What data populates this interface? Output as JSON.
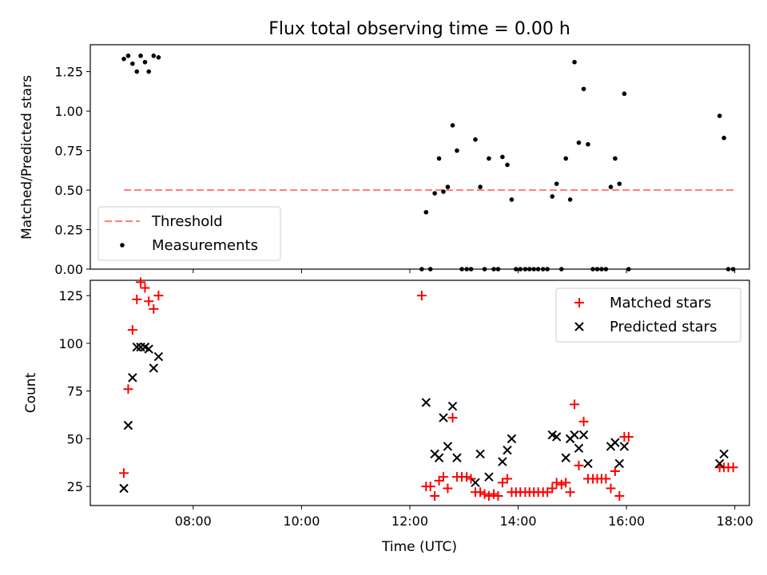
{
  "chart_data": {
    "type": "scatter",
    "title": "Flux total observing time = 0.00 h",
    "xlabel": "Time (UTC)",
    "xlim": [
      6.1,
      18.27
    ],
    "xticks": [
      8,
      10,
      12,
      14,
      16,
      18
    ],
    "xtick_labels": [
      "08:00",
      "10:00",
      "12:00",
      "14:00",
      "16:00",
      "18:00"
    ],
    "panels": [
      {
        "ylabel": "Matched/Predicted stars",
        "ylim": [
          0,
          1.42
        ],
        "yticks": [
          0,
          0.25,
          0.5,
          0.75,
          1.0,
          1.25
        ],
        "ytick_labels": [
          "0.00",
          "0.25",
          "0.50",
          "0.75",
          "1.00",
          "1.25"
        ],
        "legend_position": "lower-left",
        "series": [
          {
            "name": "Threshold",
            "kind": "line",
            "style": "dashed",
            "color": "#ff7f7f",
            "x": [
              6.72,
              17.98
            ],
            "y": [
              0.5,
              0.5
            ]
          },
          {
            "name": "Measurements",
            "kind": "scatter",
            "marker": "dot",
            "color": "#000000",
            "x": [
              6.72,
              6.8,
              6.88,
              6.96,
              7.03,
              7.11,
              7.18,
              7.27,
              7.36,
              12.22,
              12.3,
              12.38,
              12.46,
              12.54,
              12.62,
              12.7,
              12.79,
              12.87,
              12.96,
              13.05,
              13.13,
              13.21,
              13.3,
              13.38,
              13.46,
              13.55,
              13.63,
              13.71,
              13.8,
              13.88,
              13.96,
              14.04,
              14.13,
              14.21,
              14.29,
              14.37,
              14.46,
              14.54,
              14.63,
              14.71,
              14.8,
              14.88,
              14.96,
              15.04,
              15.12,
              15.21,
              15.29,
              15.38,
              15.46,
              15.54,
              15.62,
              15.71,
              15.79,
              15.87,
              15.96,
              16.04,
              17.72,
              17.8,
              17.88,
              17.97
            ],
            "y": [
              1.33,
              1.35,
              1.3,
              1.25,
              1.35,
              1.31,
              1.25,
              1.35,
              1.34,
              0.0,
              0.36,
              0.0,
              0.48,
              0.7,
              0.49,
              0.52,
              0.91,
              0.75,
              0.0,
              0.0,
              0.0,
              0.82,
              0.52,
              0.0,
              0.7,
              0.0,
              0.0,
              0.71,
              0.66,
              0.44,
              0.0,
              0.0,
              0.0,
              0.0,
              0.0,
              0.0,
              0.0,
              0.0,
              0.46,
              0.54,
              0.0,
              0.7,
              0.44,
              1.31,
              0.8,
              1.14,
              0.79,
              0.0,
              0.0,
              0.0,
              0.0,
              0.52,
              0.7,
              0.54,
              1.11,
              0.0,
              0.97,
              0.83,
              0.0,
              0.0
            ]
          }
        ]
      },
      {
        "ylabel": "Count",
        "ylim": [
          15,
          133
        ],
        "yticks": [
          25,
          50,
          75,
          100,
          125
        ],
        "ytick_labels": [
          "25",
          "50",
          "75",
          "100",
          "125"
        ],
        "legend_position": "top-right",
        "series": [
          {
            "name": "Matched stars",
            "kind": "scatter",
            "marker": "plus",
            "color": "#ff0000",
            "x": [
              6.72,
              6.8,
              6.88,
              6.96,
              7.03,
              7.11,
              7.18,
              7.27,
              7.36,
              12.22,
              12.3,
              12.38,
              12.46,
              12.54,
              12.62,
              12.7,
              12.79,
              12.87,
              12.96,
              13.05,
              13.13,
              13.21,
              13.3,
              13.38,
              13.46,
              13.55,
              13.63,
              13.71,
              13.8,
              13.88,
              13.96,
              14.04,
              14.13,
              14.21,
              14.29,
              14.37,
              14.46,
              14.54,
              14.63,
              14.71,
              14.8,
              14.88,
              14.96,
              15.04,
              15.12,
              15.21,
              15.29,
              15.38,
              15.46,
              15.54,
              15.62,
              15.71,
              15.79,
              15.87,
              15.96,
              16.04,
              17.72,
              17.8,
              17.88,
              17.97
            ],
            "y": [
              32,
              76,
              107,
              123,
              132,
              129,
              122,
              118,
              125,
              125,
              25,
              25,
              20,
              28,
              30,
              24,
              61,
              30,
              30,
              30,
              29,
              22,
              22,
              21,
              20,
              21,
              20,
              27,
              29,
              22,
              22,
              22,
              22,
              22,
              22,
              22,
              22,
              22,
              24,
              27,
              26,
              27,
              22,
              68,
              36,
              59,
              29,
              29,
              29,
              29,
              29,
              24,
              33,
              20,
              51,
              51,
              35,
              35,
              35,
              35
            ]
          },
          {
            "name": "Predicted stars",
            "kind": "scatter",
            "marker": "cross",
            "color": "#000000",
            "x": [
              6.72,
              6.8,
              6.88,
              6.96,
              7.03,
              7.11,
              7.18,
              7.27,
              7.36,
              12.3,
              12.46,
              12.54,
              12.62,
              12.7,
              12.79,
              12.87,
              13.21,
              13.3,
              13.46,
              13.71,
              13.8,
              13.88,
              14.63,
              14.71,
              14.88,
              14.96,
              15.04,
              15.12,
              15.21,
              15.29,
              15.71,
              15.79,
              15.87,
              15.96,
              17.72,
              17.8
            ],
            "y": [
              24,
              57,
              82,
              98,
              98,
              98,
              97,
              87,
              93,
              69,
              42,
              40,
              61,
              46,
              67,
              40,
              27,
              42,
              30,
              38,
              44,
              50,
              52,
              51,
              40,
              50,
              52,
              45,
              52,
              37,
              46,
              48,
              37,
              46,
              37,
              42
            ]
          }
        ]
      }
    ]
  }
}
